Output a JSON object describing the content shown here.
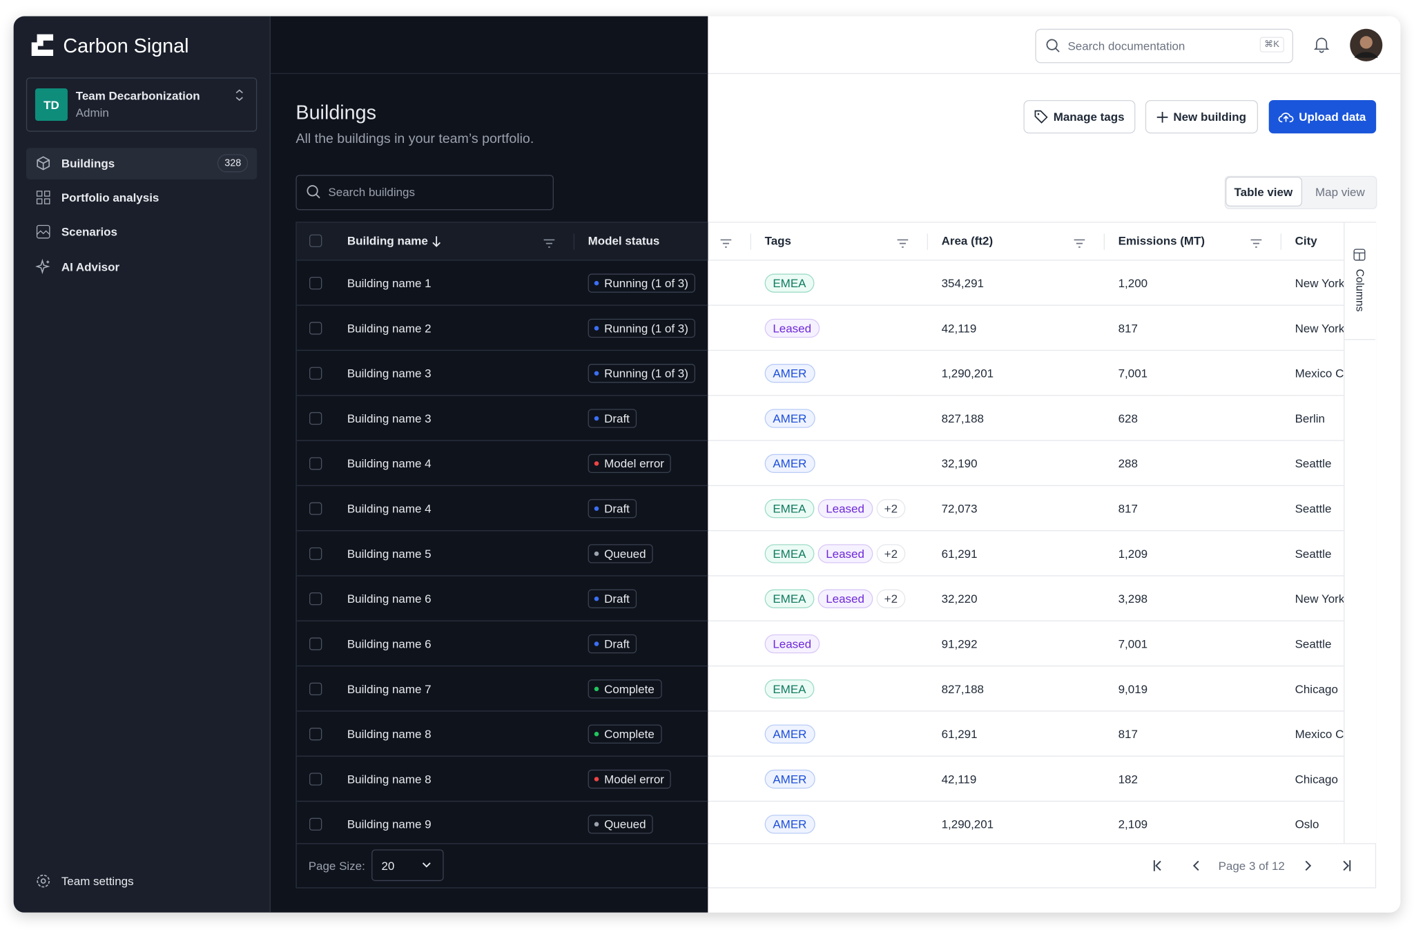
{
  "sidebar": {
    "brand": "Carbon Signal",
    "team": {
      "initials": "TD",
      "name": "Team Decarbonization",
      "role": "Admin"
    },
    "nav": [
      {
        "label": "Buildings",
        "badge": "328"
      },
      {
        "label": "Portfolio analysis"
      },
      {
        "label": "Scenarios"
      },
      {
        "label": "AI Advisor"
      }
    ],
    "settings": "Team settings"
  },
  "header": {
    "search": "Search documentation",
    "shortcut": "⌘K"
  },
  "page": {
    "title": "Buildings",
    "subtitle": "All the buildings in your team’s portfolio.",
    "search": "Search buildings",
    "buttons": [
      "Manage tags",
      "New building",
      "Upload data"
    ],
    "views": [
      "Table view",
      "Map view"
    ]
  },
  "table": {
    "columns": [
      "Building name",
      "Model status",
      "Tags",
      "Area (ft2)",
      "Emissions (MT)",
      "City"
    ],
    "columns_toggle": "Columns",
    "rows": [
      {
        "name": "Building name 1",
        "status": {
          "label": "Running (1 of 3)",
          "dot": "#3b6ff5"
        },
        "tags": [
          {
            "label": "EMEA",
            "color": "green"
          }
        ],
        "area": "354,291",
        "emissions": "1,200",
        "city": "New York"
      },
      {
        "name": "Building name 2",
        "status": {
          "label": "Running (1 of 3)",
          "dot": "#3b6ff5"
        },
        "tags": [
          {
            "label": "Leased",
            "color": "purple"
          }
        ],
        "area": "42,119",
        "emissions": "817",
        "city": "New York"
      },
      {
        "name": "Building name 3",
        "status": {
          "label": "Running (1 of 3)",
          "dot": "#3b6ff5"
        },
        "tags": [
          {
            "label": "AMER",
            "color": "blue"
          }
        ],
        "area": "1,290,201",
        "emissions": "7,001",
        "city": "Mexico City"
      },
      {
        "name": "Building name 3",
        "status": {
          "label": "Draft",
          "dot": "#3b6ff5"
        },
        "tags": [
          {
            "label": "AMER",
            "color": "blue"
          }
        ],
        "area": "827,188",
        "emissions": "628",
        "city": "Berlin"
      },
      {
        "name": "Building name 4",
        "status": {
          "label": "Model error",
          "dot": "#ef4444"
        },
        "tags": [
          {
            "label": "AMER",
            "color": "blue"
          }
        ],
        "area": "32,190",
        "emissions": "288",
        "city": "Seattle"
      },
      {
        "name": "Building name 4",
        "status": {
          "label": "Draft",
          "dot": "#3b6ff5"
        },
        "tags": [
          {
            "label": "EMEA",
            "color": "green"
          },
          {
            "label": "Leased",
            "color": "purple"
          },
          {
            "label": "+2",
            "color": "gray"
          }
        ],
        "area": "72,073",
        "emissions": "817",
        "city": "Seattle"
      },
      {
        "name": "Building name 5",
        "status": {
          "label": "Queued",
          "dot": "#9ca3af"
        },
        "tags": [
          {
            "label": "EMEA",
            "color": "green"
          },
          {
            "label": "Leased",
            "color": "purple"
          },
          {
            "label": "+2",
            "color": "gray"
          }
        ],
        "area": "61,291",
        "emissions": "1,209",
        "city": "Seattle"
      },
      {
        "name": "Building name 6",
        "status": {
          "label": "Draft",
          "dot": "#3b6ff5"
        },
        "tags": [
          {
            "label": "EMEA",
            "color": "green"
          },
          {
            "label": "Leased",
            "color": "purple"
          },
          {
            "label": "+2",
            "color": "gray"
          }
        ],
        "area": "32,220",
        "emissions": "3,298",
        "city": "New York"
      },
      {
        "name": "Building name 6",
        "status": {
          "label": "Draft",
          "dot": "#3b6ff5"
        },
        "tags": [
          {
            "label": "Leased",
            "color": "purple"
          }
        ],
        "area": "91,292",
        "emissions": "7,001",
        "city": "Seattle"
      },
      {
        "name": "Building name 7",
        "status": {
          "label": "Complete",
          "dot": "#22c55e"
        },
        "tags": [
          {
            "label": "EMEA",
            "color": "green"
          }
        ],
        "area": "827,188",
        "emissions": "9,019",
        "city": "Chicago"
      },
      {
        "name": "Building name 8",
        "status": {
          "label": "Complete",
          "dot": "#22c55e"
        },
        "tags": [
          {
            "label": "AMER",
            "color": "blue"
          }
        ],
        "area": "61,291",
        "emissions": "817",
        "city": "Mexico City"
      },
      {
        "name": "Building name 8",
        "status": {
          "label": "Model error",
          "dot": "#ef4444"
        },
        "tags": [
          {
            "label": "AMER",
            "color": "blue"
          }
        ],
        "area": "42,119",
        "emissions": "182",
        "city": "Chicago"
      },
      {
        "name": "Building name 9",
        "status": {
          "label": "Queued",
          "dot": "#9ca3af"
        },
        "tags": [
          {
            "label": "AMER",
            "color": "blue"
          }
        ],
        "area": "1,290,201",
        "emissions": "2,109",
        "city": "Oslo"
      }
    ]
  },
  "pagination": {
    "page_size_label": "Page Size:",
    "page_size": "20",
    "page": "Page 3 of 12"
  }
}
